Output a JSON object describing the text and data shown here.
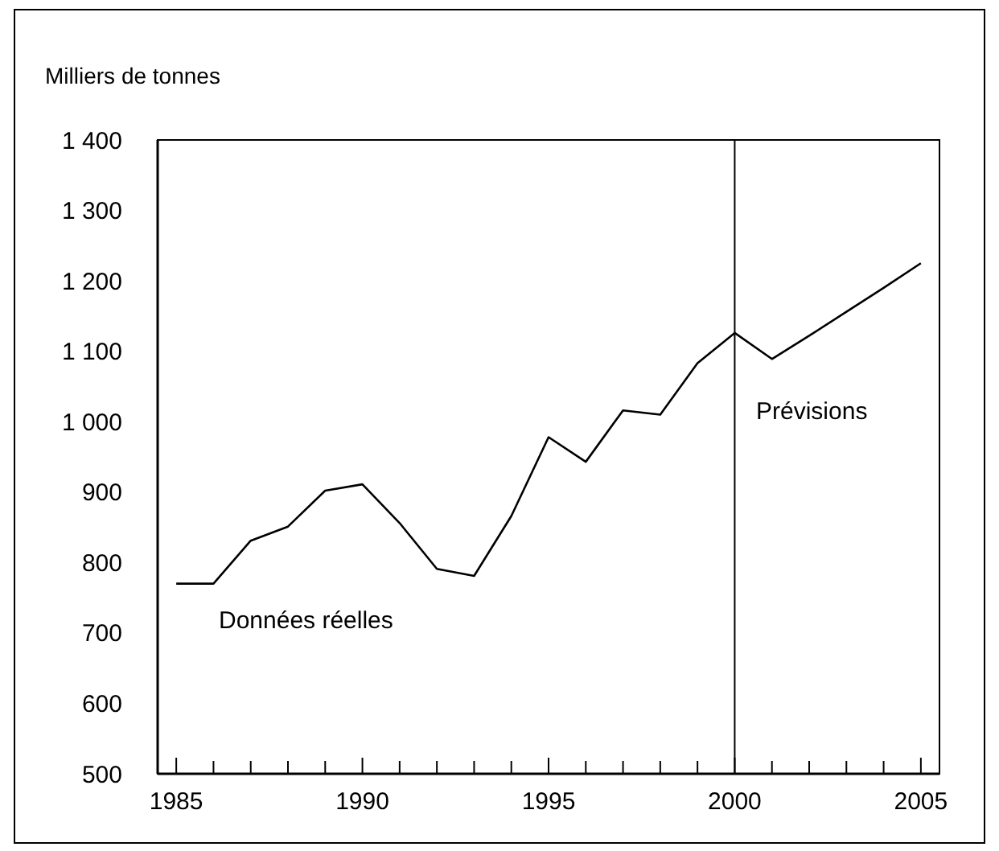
{
  "chart_data": {
    "type": "line",
    "ylabel": "Milliers de tonnes",
    "x": [
      1985,
      1986,
      1987,
      1988,
      1989,
      1990,
      1991,
      1992,
      1993,
      1994,
      1995,
      1996,
      1997,
      1998,
      1999,
      2000,
      2001,
      2002,
      2003,
      2004,
      2005
    ],
    "series": [
      {
        "color": "#000000",
        "values": [
          770,
          770,
          831,
          851,
          902,
          911,
          856,
          791,
          781,
          866,
          978,
          943,
          1016,
          1010,
          1083,
          1126,
          1089,
          1122,
          1156,
          1190,
          1225
        ]
      }
    ],
    "xlim": [
      1984.5,
      2005.5
    ],
    "xticks": [
      1985,
      {
        "value": 1986,
        "label": null
      },
      {
        "value": 1987,
        "label": null
      },
      {
        "value": 1988,
        "label": null
      },
      {
        "value": 1989,
        "label": null
      },
      1990,
      {
        "value": 1991,
        "label": null
      },
      {
        "value": 1992,
        "label": null
      },
      {
        "value": 1993,
        "label": null
      },
      {
        "value": 1994,
        "label": null
      },
      1995,
      {
        "value": 1996,
        "label": null
      },
      {
        "value": 1997,
        "label": null
      },
      {
        "value": 1998,
        "label": null
      },
      {
        "value": 1999,
        "label": null
      },
      2000,
      {
        "value": 2001,
        "label": null
      },
      {
        "value": 2002,
        "label": null
      },
      {
        "value": 2003,
        "label": null
      },
      {
        "value": 2004,
        "label": null
      },
      2005
    ],
    "ylim": [
      500,
      1400
    ],
    "yticks": [
      500,
      600,
      700,
      800,
      900,
      {
        "value": 1000,
        "label": "1 000"
      },
      {
        "value": 1100,
        "label": "1 100"
      },
      {
        "value": 1200,
        "label": "1 200"
      },
      {
        "value": 1300,
        "label": "1 300"
      },
      {
        "value": 1400,
        "label": "1 400"
      }
    ],
    "ref_lines": [
      {
        "axis": "x",
        "value": 2000,
        "color": "#000000"
      }
    ],
    "annotations": [
      "Données réelles",
      "Prévisions"
    ],
    "grid": false,
    "marker": "none",
    "line_style": "solid"
  }
}
